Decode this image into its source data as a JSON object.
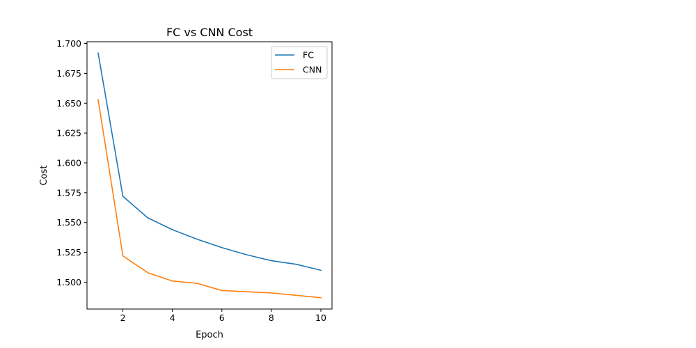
{
  "chart_data": {
    "type": "line",
    "title": "FC vs CNN Cost",
    "xlabel": "Epoch",
    "ylabel": "Cost",
    "x": [
      1,
      2,
      3,
      4,
      5,
      6,
      7,
      8,
      9,
      10
    ],
    "series": [
      {
        "name": "FC",
        "color": "#1f77b4",
        "values": [
          1.692,
          1.572,
          1.554,
          1.544,
          1.536,
          1.529,
          1.523,
          1.518,
          1.515,
          1.51
        ]
      },
      {
        "name": "CNN",
        "color": "#ff7f0e",
        "values": [
          1.653,
          1.522,
          1.508,
          1.501,
          1.499,
          1.493,
          1.492,
          1.491,
          1.489,
          1.487
        ]
      }
    ],
    "xlim": [
      0.55,
      10.45
    ],
    "ylim": [
      1.4775,
      1.7015
    ],
    "xticks": [
      2,
      4,
      6,
      8,
      10
    ],
    "xtick_labels": [
      "2",
      "4",
      "6",
      "8",
      "10"
    ],
    "yticks": [
      1.5,
      1.525,
      1.55,
      1.575,
      1.6,
      1.625,
      1.65,
      1.675,
      1.7
    ],
    "ytick_labels": [
      "1.500",
      "1.525",
      "1.550",
      "1.575",
      "1.600",
      "1.625",
      "1.650",
      "1.675",
      "1.700"
    ],
    "grid": false,
    "legend_position": "top-right"
  }
}
